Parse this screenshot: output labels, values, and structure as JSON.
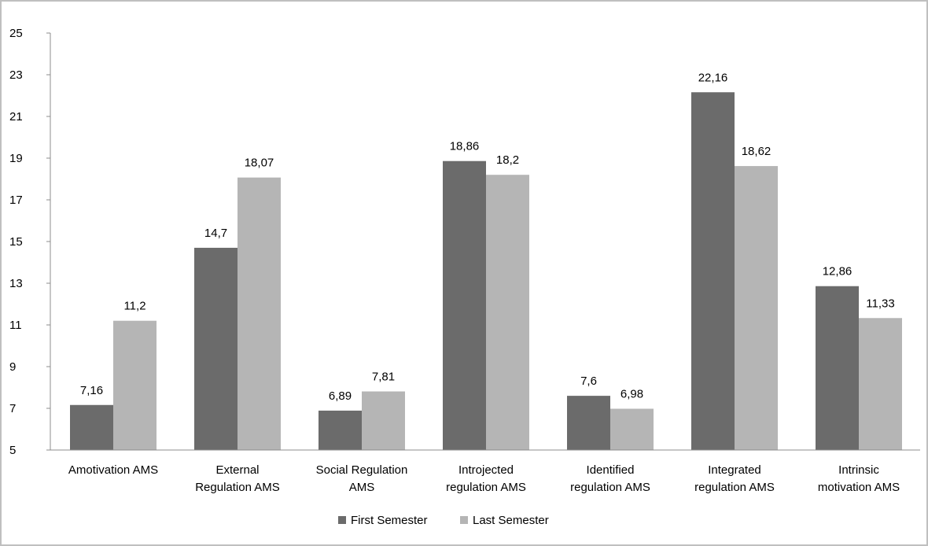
{
  "chart_data": {
    "type": "bar",
    "title": "",
    "xlabel": "",
    "ylabel": "",
    "ylim": [
      5,
      25
    ],
    "yticks": [
      5,
      7,
      9,
      11,
      13,
      15,
      17,
      19,
      21,
      23,
      25
    ],
    "grid": false,
    "legend_position": "bottom",
    "categories": [
      [
        "Amotivation AMS"
      ],
      [
        "External",
        "Regulation AMS"
      ],
      [
        "Social Regulation",
        "AMS"
      ],
      [
        "Introjected",
        "regulation AMS"
      ],
      [
        "Identified",
        "regulation AMS"
      ],
      [
        "Integrated",
        "regulation AMS"
      ],
      [
        "Intrinsic",
        "motivation AMS"
      ]
    ],
    "series": [
      {
        "name": "First Semester",
        "color": "#6b6b6b",
        "values": [
          7.16,
          14.7,
          6.89,
          18.86,
          7.6,
          22.16,
          12.86
        ],
        "labels": [
          "7,16",
          "14,7",
          "6,89",
          "18,86",
          "7,6",
          "22,16",
          "12,86"
        ]
      },
      {
        "name": "Last Semester",
        "color": "#b5b5b5",
        "values": [
          11.2,
          18.07,
          7.81,
          18.2,
          6.98,
          18.62,
          11.33
        ],
        "labels": [
          "11,2",
          "18,07",
          "7,81",
          "18,2",
          "6,98",
          "18,62",
          "11,33"
        ]
      }
    ]
  }
}
